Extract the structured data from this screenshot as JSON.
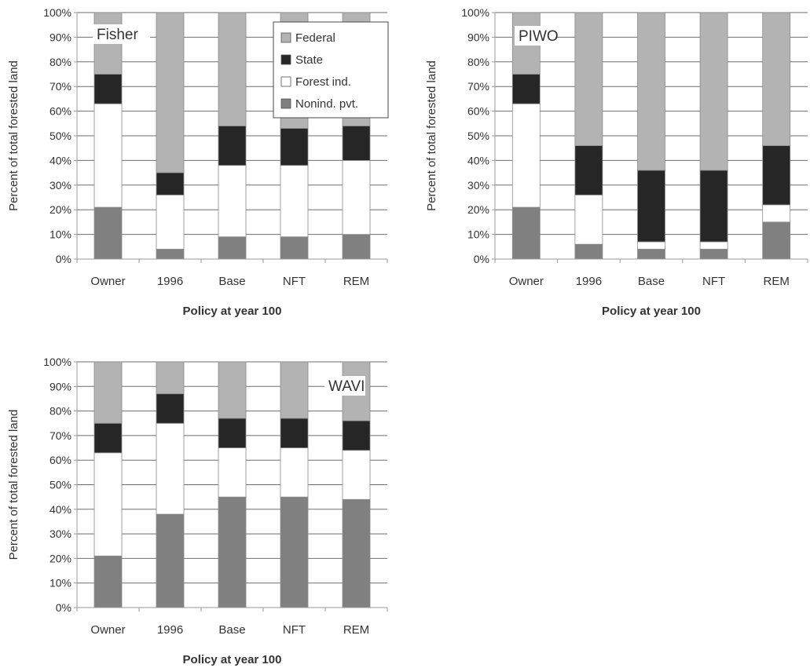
{
  "colors": {
    "federal": "#b3b3b3",
    "state": "#262626",
    "forest_ind": "#ffffff",
    "nonind_pvt": "#808080",
    "gridline": "#6e6e6e",
    "bar_outline": "#8a8a8a",
    "axis": "#9a9a9a",
    "text": "#333333"
  },
  "legend": {
    "entries": [
      "Federal",
      "State",
      "Forest ind.",
      "Nonind. pvt."
    ],
    "placement": "top-right (Fisher panel)"
  },
  "chart_data": [
    {
      "type": "bar",
      "stacked": true,
      "panel_label": "Fisher",
      "categories": [
        "Owner",
        "1996",
        "Base",
        "NFT",
        "REM"
      ],
      "xlabel": "Policy at year 100",
      "ylabel": "Percent of total forested land",
      "yticks": [
        "0%",
        "10%",
        "20%",
        "30%",
        "40%",
        "50%",
        "60%",
        "70%",
        "80%",
        "90%",
        "100%"
      ],
      "ylim": [
        0,
        100
      ],
      "grid": true,
      "legend": true,
      "series": [
        {
          "name": "Nonind. pvt.",
          "values": [
            21,
            4,
            9,
            9,
            10
          ]
        },
        {
          "name": "Forest ind.",
          "values": [
            42,
            22,
            29,
            29,
            30
          ]
        },
        {
          "name": "State",
          "values": [
            12,
            9,
            16,
            15,
            14
          ]
        },
        {
          "name": "Federal",
          "values": [
            25,
            65,
            46,
            47,
            46
          ]
        }
      ]
    },
    {
      "type": "bar",
      "stacked": true,
      "panel_label": "PIWO",
      "categories": [
        "Owner",
        "1996",
        "Base",
        "NFT",
        "REM"
      ],
      "xlabel": "Policy at year 100",
      "ylabel": "Percent of total forested land",
      "yticks": [
        "0%",
        "10%",
        "20%",
        "30%",
        "40%",
        "50%",
        "60%",
        "70%",
        "80%",
        "90%",
        "100%"
      ],
      "ylim": [
        0,
        100
      ],
      "grid": true,
      "legend": false,
      "series": [
        {
          "name": "Nonind. pvt.",
          "values": [
            21,
            6,
            4,
            4,
            15
          ]
        },
        {
          "name": "Forest ind.",
          "values": [
            42,
            20,
            3,
            3,
            7
          ]
        },
        {
          "name": "State",
          "values": [
            12,
            20,
            29,
            29,
            24
          ]
        },
        {
          "name": "Federal",
          "values": [
            25,
            54,
            64,
            64,
            54
          ]
        }
      ]
    },
    {
      "type": "bar",
      "stacked": true,
      "panel_label": "WAVI",
      "categories": [
        "Owner",
        "1996",
        "Base",
        "NFT",
        "REM"
      ],
      "xlabel": "Policy at year 100",
      "ylabel": "Percent of total forested land",
      "yticks": [
        "0%",
        "10%",
        "20%",
        "30%",
        "40%",
        "50%",
        "60%",
        "70%",
        "80%",
        "90%",
        "100%"
      ],
      "ylim": [
        0,
        100
      ],
      "grid": true,
      "legend": false,
      "series": [
        {
          "name": "Nonind. pvt.",
          "values": [
            21,
            38,
            45,
            45,
            44
          ]
        },
        {
          "name": "Forest ind.",
          "values": [
            42,
            37,
            20,
            20,
            20
          ]
        },
        {
          "name": "State",
          "values": [
            12,
            12,
            12,
            12,
            12
          ]
        },
        {
          "name": "Federal",
          "values": [
            25,
            13,
            23,
            23,
            24
          ]
        }
      ]
    }
  ]
}
